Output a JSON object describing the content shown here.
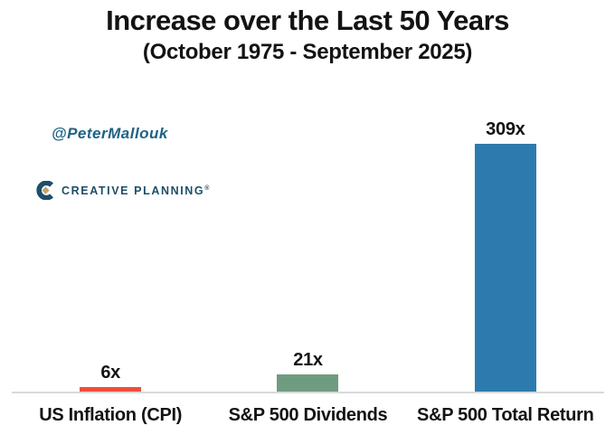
{
  "title": "Increase over the Last 50 Years",
  "subtitle": "(October 1975 - September 2025)",
  "attribution": "@PeterMallouk",
  "logo": {
    "text": "CREATIVE PLANNING",
    "trademark": "®",
    "navy": "#1d4e69",
    "gold": "#c2a36b"
  },
  "chart_data": {
    "type": "bar",
    "title": "Increase over the Last 50 Years",
    "subtitle": "(October 1975 - September 2025)",
    "categories": [
      "US Inflation (CPI)",
      "S&P 500 Dividends",
      "S&P 500 Total Return"
    ],
    "values": [
      6,
      21,
      309
    ],
    "value_labels": [
      "6x",
      "21x",
      "309x"
    ],
    "bar_colors": [
      "#f04e3b",
      "#6f9c80",
      "#2d7bae"
    ],
    "xlabel": "",
    "ylabel": "",
    "ylim": [
      0,
      320
    ],
    "grid": false,
    "legend": "none",
    "baseline_color": "#d9d9d9",
    "background": "#ffffff"
  }
}
